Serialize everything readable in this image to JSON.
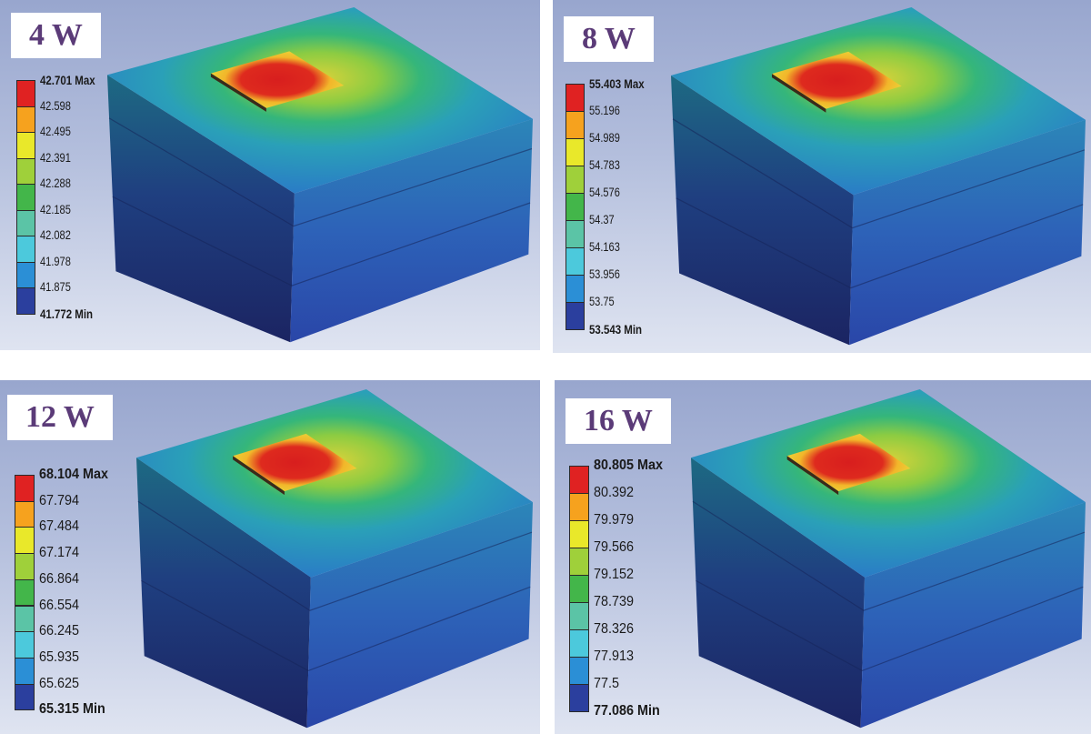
{
  "colors": {
    "scale": [
      "#2b3f9e",
      "#2b8fd6",
      "#4cc9dc",
      "#5bc4a6",
      "#43b64a",
      "#9fd03a",
      "#e9e82a",
      "#f6a21e",
      "#e02222"
    ],
    "title_text": "#5b3b78"
  },
  "panels": [
    {
      "title": "4 W",
      "legend": [
        "42.701 Max",
        "42.598",
        "42.495",
        "42.391",
        "42.288",
        "42.185",
        "42.082",
        "41.978",
        "41.875",
        "41.772 Min"
      ]
    },
    {
      "title": "8 W",
      "legend": [
        "55.403 Max",
        "55.196",
        "54.989",
        "54.783",
        "54.576",
        "54.37",
        "54.163",
        "53.956",
        "53.75",
        "53.543 Min"
      ]
    },
    {
      "title": "12 W",
      "legend": [
        "68.104 Max",
        "67.794",
        "67.484",
        "67.174",
        "66.864",
        "66.554",
        "66.245",
        "65.935",
        "65.625",
        "65.315 Min"
      ]
    },
    {
      "title": "16 W",
      "legend": [
        "80.805 Max",
        "80.392",
        "79.979",
        "79.566",
        "79.152",
        "78.739",
        "78.326",
        "77.913",
        "77.5",
        "77.086 Min"
      ]
    }
  ]
}
